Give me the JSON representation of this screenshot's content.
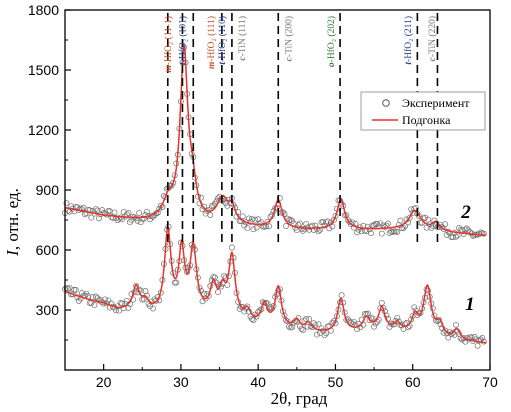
{
  "chart_data": {
    "type": "line",
    "title": "",
    "xlabel": "2θ, град",
    "ylabel": "I, отн. ед.",
    "ylabel_parts": {
      "symbol": "I",
      "rest": ", отн. ед."
    },
    "xlim": [
      15,
      70
    ],
    "ylim": [
      0,
      1800
    ],
    "xticks": [
      20,
      30,
      40,
      50,
      60,
      70
    ],
    "yticks": [
      300,
      600,
      900,
      1200,
      1500,
      1800
    ],
    "grid": false,
    "legend": {
      "position": "right",
      "entries": [
        "Эксперимент",
        "Подгонка"
      ]
    },
    "colors": {
      "fit": "#e3342f",
      "points": "#666666",
      "m": "#c94a1e",
      "t": "#2b3a8f",
      "c": "#777777",
      "o": "#2e7d32"
    },
    "reference_lines": [
      28.3,
      30.2,
      31.6,
      35.3,
      36.6,
      42.6,
      50.6,
      60.6,
      63.2
    ],
    "peak_labels": [
      {
        "x": 28.3,
        "phase": "m",
        "prefix": "m",
        "text": "-HfO₂ (11-1)",
        "color": "#c94a1e"
      },
      {
        "x": 30.2,
        "phase": "t",
        "prefix": "t",
        "text": "-HfO₂ (101)",
        "color": "#2b3a8f"
      },
      {
        "x": 33.9,
        "phase": "m",
        "prefix": "m",
        "text": "-HfO₂ (111)",
        "color": "#c94a1e"
      },
      {
        "x": 35.3,
        "phase": "t",
        "prefix": "t",
        "text": "-HfO₂ (110)",
        "color": "#2b3a8f"
      },
      {
        "x": 37.9,
        "phase": "c",
        "prefix": "c",
        "text": "-TiN (111)",
        "color": "#777777"
      },
      {
        "x": 43.9,
        "phase": "c",
        "prefix": "c",
        "text": "-TiN (200)",
        "color": "#777777"
      },
      {
        "x": 49.4,
        "phase": "o",
        "prefix": "o",
        "text": "-HfO₂ (202)",
        "color": "#2e7d32"
      },
      {
        "x": 59.4,
        "phase": "t",
        "prefix": "t",
        "text": "-HfO₂ (211)",
        "color": "#2b3a8f"
      },
      {
        "x": 62.5,
        "phase": "c",
        "prefix": "c",
        "text": "-TiN (220)",
        "color": "#777777"
      }
    ],
    "curve_labels": [
      {
        "text": "2",
        "x": 66.9,
        "y": 760
      },
      {
        "text": "1",
        "x": 67.4,
        "y": 300
      }
    ],
    "series": [
      {
        "name": "2",
        "label_x": 66.9,
        "baseline": [
          [
            15,
            810
          ],
          [
            20,
            770
          ],
          [
            25,
            745
          ],
          [
            30,
            730
          ],
          [
            35,
            725
          ],
          [
            40,
            710
          ],
          [
            45,
            700
          ],
          [
            50,
            700
          ],
          [
            55,
            700
          ],
          [
            60,
            705
          ],
          [
            65,
            685
          ],
          [
            70,
            670
          ]
        ],
        "peaks": [
          {
            "center": 28.4,
            "height": 90,
            "width": 0.9
          },
          {
            "center": 30.4,
            "height": 840,
            "width": 0.6
          },
          {
            "center": 31.5,
            "height": 140,
            "width": 0.6
          },
          {
            "center": 35.4,
            "height": 120,
            "width": 0.9
          },
          {
            "center": 36.6,
            "height": 70,
            "width": 0.5
          },
          {
            "center": 42.6,
            "height": 140,
            "width": 0.6
          },
          {
            "center": 50.7,
            "height": 150,
            "width": 0.6
          },
          {
            "center": 60.3,
            "height": 90,
            "width": 0.9
          },
          {
            "center": 63.0,
            "height": 40,
            "width": 0.6
          }
        ]
      },
      {
        "name": "1",
        "label_x": 67.4,
        "baseline": [
          [
            15,
            390
          ],
          [
            18,
            350
          ],
          [
            20,
            330
          ],
          [
            22,
            300
          ],
          [
            25,
            300
          ],
          [
            27,
            280
          ],
          [
            30,
            290
          ],
          [
            33,
            280
          ],
          [
            35,
            270
          ],
          [
            40,
            220
          ],
          [
            45,
            190
          ],
          [
            50,
            180
          ],
          [
            55,
            200
          ],
          [
            60,
            180
          ],
          [
            65,
            150
          ],
          [
            70,
            130
          ]
        ],
        "peaks": [
          {
            "center": 24.2,
            "height": 110,
            "width": 0.5
          },
          {
            "center": 25.4,
            "height": 40,
            "width": 0.5
          },
          {
            "center": 28.3,
            "height": 400,
            "width": 0.5
          },
          {
            "center": 30.1,
            "height": 290,
            "width": 0.45
          },
          {
            "center": 31.6,
            "height": 310,
            "width": 0.5
          },
          {
            "center": 34.2,
            "height": 130,
            "width": 0.5
          },
          {
            "center": 35.4,
            "height": 110,
            "width": 0.5
          },
          {
            "center": 36.6,
            "height": 300,
            "width": 0.5
          },
          {
            "center": 38.6,
            "height": 50,
            "width": 0.5
          },
          {
            "center": 40.8,
            "height": 100,
            "width": 0.5
          },
          {
            "center": 42.6,
            "height": 200,
            "width": 0.5
          },
          {
            "center": 45.0,
            "height": 50,
            "width": 0.5
          },
          {
            "center": 46.5,
            "height": 40,
            "width": 0.5
          },
          {
            "center": 50.7,
            "height": 170,
            "width": 0.5
          },
          {
            "center": 54.0,
            "height": 60,
            "width": 0.5
          },
          {
            "center": 56.0,
            "height": 110,
            "width": 0.5
          },
          {
            "center": 58.0,
            "height": 40,
            "width": 0.5
          },
          {
            "center": 60.3,
            "height": 80,
            "width": 0.5
          },
          {
            "center": 61.9,
            "height": 240,
            "width": 0.6
          },
          {
            "center": 63.5,
            "height": 60,
            "width": 0.5
          },
          {
            "center": 65.7,
            "height": 50,
            "width": 0.5
          }
        ]
      }
    ]
  }
}
